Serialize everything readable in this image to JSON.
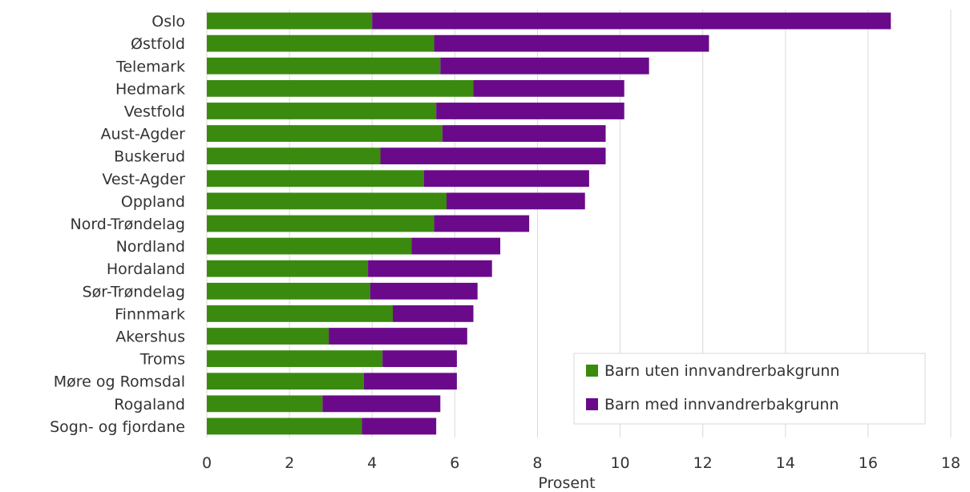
{
  "chart_data": {
    "type": "bar",
    "orientation": "horizontal",
    "stacked": true,
    "title": "",
    "xlabel": "Prosent",
    "ylabel": "",
    "xlim": [
      0,
      18
    ],
    "x_ticks": [
      0,
      2,
      4,
      6,
      8,
      10,
      12,
      14,
      16,
      18
    ],
    "grid": true,
    "legend_position": "bottom-right",
    "categories": [
      "Oslo",
      "Østfold",
      "Telemark",
      "Hedmark",
      "Vestfold",
      "Aust-Agder",
      "Buskerud",
      "Vest-Agder",
      "Oppland",
      "Nord-Trøndelag",
      "Nordland",
      "Hordaland",
      "Sør-Trøndelag",
      "Finnmark",
      "Akershus",
      "Troms",
      "Møre og Romsdal",
      "Rogaland",
      "Sogn- og fjordane"
    ],
    "series": [
      {
        "name": "Barn uten innvandrerbakgrunn",
        "color": "#3a8a0f",
        "values": [
          4.0,
          5.5,
          5.65,
          6.45,
          5.55,
          5.7,
          4.2,
          5.25,
          5.8,
          5.5,
          4.95,
          3.9,
          3.95,
          4.5,
          2.95,
          4.25,
          3.8,
          2.8,
          3.75
        ]
      },
      {
        "name": "Barn med innvandrerbakgrunn",
        "color": "#6a0a8a",
        "values": [
          12.55,
          6.65,
          5.05,
          3.65,
          4.55,
          3.95,
          5.45,
          4.0,
          3.35,
          2.3,
          2.15,
          3.0,
          2.6,
          1.95,
          3.35,
          1.8,
          2.25,
          2.85,
          1.8
        ]
      }
    ]
  }
}
